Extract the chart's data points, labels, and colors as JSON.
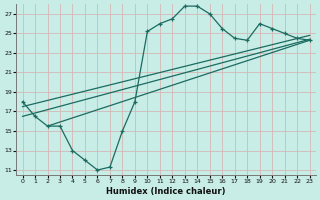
{
  "xlabel": "Humidex (Indice chaleur)",
  "ylabel": "",
  "bg_color": "#c8ece6",
  "grid_color": "#d4b8b8",
  "line_color": "#1a6b60",
  "xlim": [
    -0.5,
    23.5
  ],
  "ylim": [
    10.5,
    28.0
  ],
  "xticks": [
    0,
    1,
    2,
    3,
    4,
    5,
    6,
    7,
    8,
    9,
    10,
    11,
    12,
    13,
    14,
    15,
    16,
    17,
    18,
    19,
    20,
    21,
    22,
    23
  ],
  "yticks": [
    11,
    13,
    15,
    17,
    19,
    21,
    23,
    25,
    27
  ],
  "curve1_x": [
    0,
    1,
    2,
    3,
    4,
    5,
    6,
    7,
    8,
    9,
    10,
    11,
    12,
    13,
    14,
    15,
    16,
    17,
    18,
    19,
    20,
    21,
    22,
    23
  ],
  "curve1_y": [
    18.0,
    16.5,
    15.5,
    15.5,
    13.0,
    12.0,
    11.0,
    11.3,
    15.0,
    18.0,
    25.2,
    26.0,
    26.5,
    27.8,
    27.8,
    27.0,
    25.5,
    24.5,
    24.3,
    26.0,
    25.5,
    25.0,
    24.5,
    24.3
  ],
  "line2_x": [
    0,
    23
  ],
  "line2_y": [
    17.5,
    24.8
  ],
  "line3_x": [
    0,
    23
  ],
  "line3_y": [
    16.5,
    24.4
  ],
  "line4_x": [
    2,
    23
  ],
  "line4_y": [
    15.5,
    24.3
  ]
}
